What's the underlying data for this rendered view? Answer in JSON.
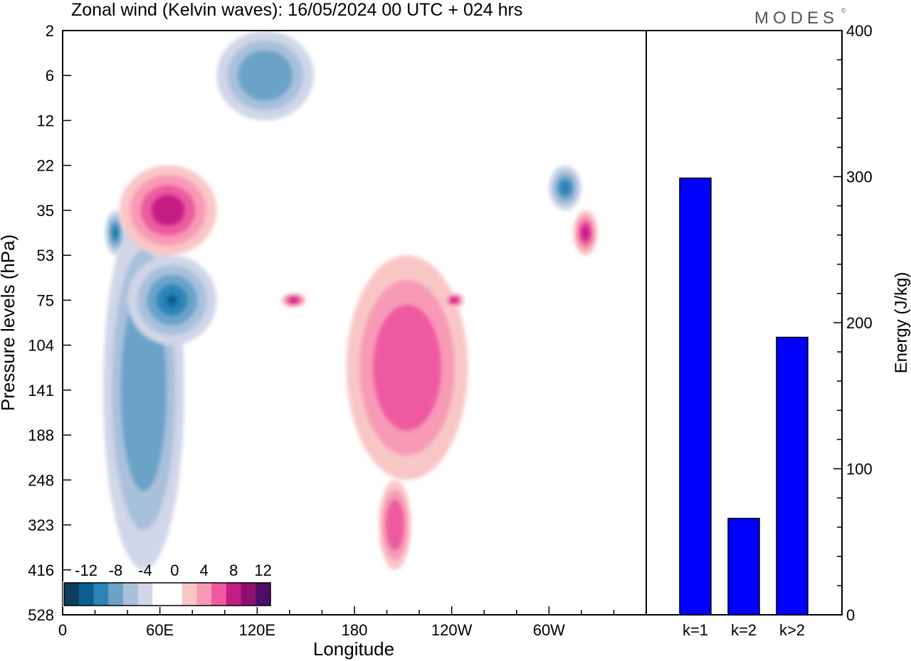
{
  "title": "Zonal wind (Kelvin waves):  16/05/2024  00 UTC  + 024 hrs",
  "brand": "MODES",
  "brand_mark": "©",
  "colors": {
    "bar": "#0000ff",
    "neg_levels": [
      "#0e3d5e",
      "#0b5e8f",
      "#2b83b8",
      "#6aa2c8",
      "#a9c0db",
      "#d0d6e8"
    ],
    "pos_levels": [
      "#f9c6c6",
      "#f79ab6",
      "#ee5aa0",
      "#c41d84",
      "#8e0f6e",
      "#4d0c66"
    ],
    "zero": "#ffffff"
  },
  "chart_data": [
    {
      "type": "heatmap",
      "title": "Zonal wind (Kelvin waves):  16/05/2024  00 UTC  + 024 hrs",
      "xlabel": "Longitude",
      "ylabel": "Pressure levels (hPa)",
      "x_ticks": [
        "0",
        "60E",
        "120E",
        "180",
        "120W",
        "60W"
      ],
      "y_ticks": [
        "2",
        "6",
        "12",
        "22",
        "35",
        "53",
        "75",
        "104",
        "141",
        "188",
        "248",
        "323",
        "416",
        "528"
      ],
      "colorbar": {
        "labels": [
          "-12",
          "-8",
          "-4",
          "0",
          "4",
          "8",
          "12"
        ],
        "levels": [
          -14,
          -12,
          -10,
          -8,
          -6,
          -4,
          -2,
          2,
          4,
          6,
          8,
          10,
          12,
          14
        ]
      },
      "features": [
        {
          "sign": "neg",
          "level": 2,
          "lon_start": 25,
          "lon_end": 75,
          "p_top": 35,
          "p_bottom": 416
        },
        {
          "sign": "neg",
          "level": 5,
          "lon_start": 30,
          "lon_end": 35,
          "p_top": 35,
          "p_bottom": 53
        },
        {
          "sign": "neg",
          "level": 4,
          "lon_start": 40,
          "lon_end": 95,
          "p_top": 53,
          "p_bottom": 104
        },
        {
          "sign": "pos",
          "level": 3,
          "lon_start": 35,
          "lon_end": 95,
          "p_top": 22,
          "p_bottom": 53
        },
        {
          "sign": "pos",
          "level": 3,
          "lon_start": 135,
          "lon_end": 150,
          "p_top": 75,
          "p_bottom": 75
        },
        {
          "sign": "pos",
          "level": 2,
          "lon_start": 175,
          "lon_end": 250,
          "p_top": 53,
          "p_bottom": 248
        },
        {
          "sign": "pos",
          "level": 3,
          "lon_start": 238,
          "lon_end": 245,
          "p_top": 75,
          "p_bottom": 75
        },
        {
          "sign": "pos",
          "level": 3,
          "lon_start": 315,
          "lon_end": 330,
          "p_top": 35,
          "p_bottom": 53
        },
        {
          "sign": "pos",
          "level": 2,
          "lon_start": 195,
          "lon_end": 215,
          "p_top": 248,
          "p_bottom": 416
        },
        {
          "sign": "neg",
          "level": 3,
          "lon_start": 300,
          "lon_end": 320,
          "p_top": 22,
          "p_bottom": 35
        },
        {
          "sign": "neg",
          "level": 2,
          "lon_start": 95,
          "lon_end": 155,
          "p_top": 2,
          "p_bottom": 12
        }
      ]
    },
    {
      "type": "bar",
      "categories": [
        "k=1",
        "k=2",
        "k>2"
      ],
      "values": [
        299,
        66,
        190
      ],
      "ylabel": "Energy (J/kg)",
      "ylim": [
        0,
        400
      ],
      "y_ticks": [
        "0",
        "100",
        "200",
        "300",
        "400"
      ]
    }
  ]
}
